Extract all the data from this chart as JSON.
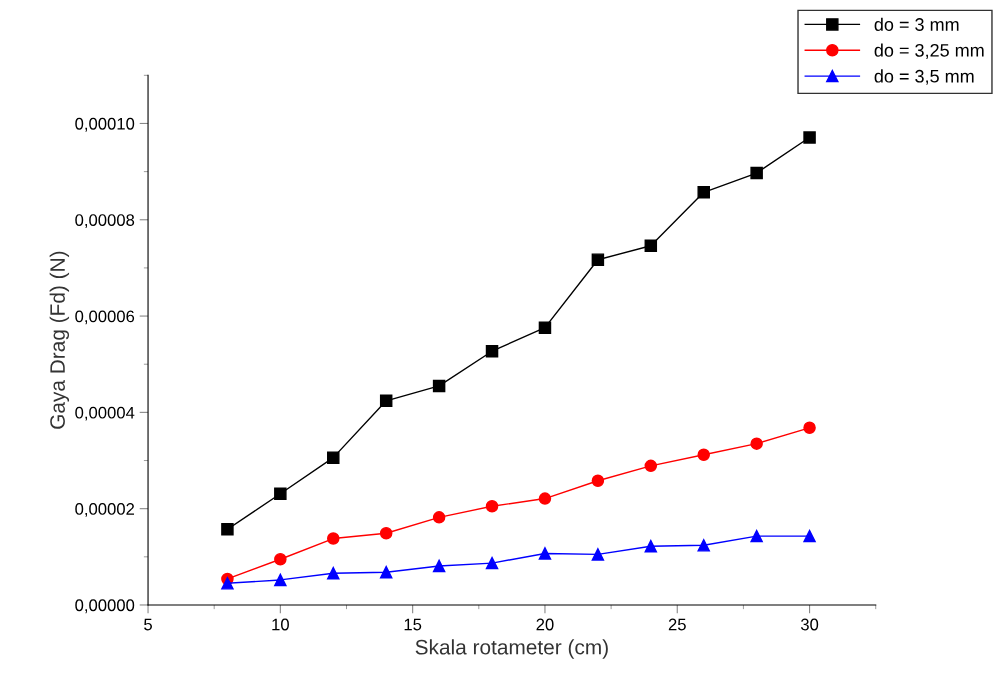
{
  "chart_data": {
    "type": "line",
    "xlabel": "Skala rotameter (cm)",
    "ylabel": "Gaya Drag (Fd) (N)",
    "x": [
      8,
      10,
      12,
      14,
      16,
      18,
      20,
      22,
      24,
      26,
      28,
      30
    ],
    "series": [
      {
        "name": "do = 3 mm",
        "color": "#000000",
        "marker": "square",
        "values": [
          1.57e-05,
          2.31e-05,
          3.06e-05,
          4.24e-05,
          4.55e-05,
          5.27e-05,
          5.76e-05,
          7.17e-05,
          7.46e-05,
          8.57e-05,
          8.97e-05,
          9.71e-05
        ]
      },
      {
        "name": "do = 3,25 mm",
        "color": "#ff0000",
        "marker": "circle",
        "values": [
          5.4e-06,
          9.5e-06,
          1.38e-05,
          1.49e-05,
          1.82e-05,
          2.05e-05,
          2.21e-05,
          2.58e-05,
          2.89e-05,
          3.12e-05,
          3.35e-05,
          3.68e-05
        ]
      },
      {
        "name": "do = 3,5 mm",
        "color": "#0000ff",
        "marker": "triangle",
        "values": [
          4.5e-06,
          5.2e-06,
          6.6e-06,
          6.8e-06,
          8.1e-06,
          8.7e-06,
          1.07e-05,
          1.05e-05,
          1.22e-05,
          1.24e-05,
          1.43e-05,
          1.43e-05
        ]
      }
    ],
    "xlim": [
      5,
      32.5
    ],
    "xticks": [
      5,
      10,
      15,
      20,
      25,
      30
    ],
    "ylim": [
      0,
      0.00011
    ],
    "yticks": [
      {
        "value": 0,
        "label": "0,00000"
      },
      {
        "value": 2e-05,
        "label": "0,00002"
      },
      {
        "value": 4e-05,
        "label": "0,00004"
      },
      {
        "value": 6e-05,
        "label": "0,00006"
      },
      {
        "value": 8e-05,
        "label": "0,00008"
      },
      {
        "value": 0.0001,
        "label": "0,00010"
      }
    ],
    "grid": false,
    "legend": "top right",
    "line_style": "solid"
  }
}
